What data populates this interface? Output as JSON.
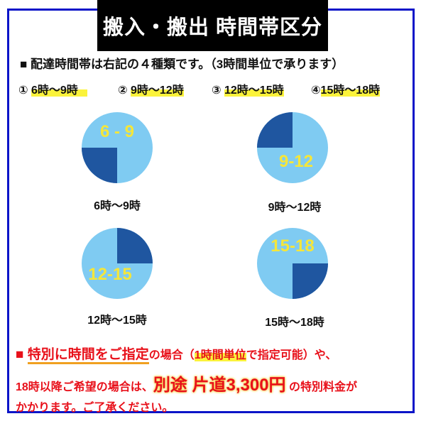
{
  "title": "搬入・搬出 時間帯区分",
  "intro": "■ 配達時間帯は右記の４種類です。（3時間単位で承ります）",
  "slots": [
    {
      "num": "①",
      "label": "6時〜9時",
      "pie_text": "6 - 9",
      "dark_quadrant": "bottom-left"
    },
    {
      "num": "②",
      "label": "9時〜12時",
      "pie_text": "9-12",
      "dark_quadrant": "top-left"
    },
    {
      "num": "③",
      "label": "12時〜15時",
      "pie_text": "12-15",
      "dark_quadrant": "top-right"
    },
    {
      "num": "④",
      "label": "15時〜18時",
      "pie_text": "15-18",
      "dark_quadrant": "bottom-right"
    }
  ],
  "colors": {
    "light": "#7fcbf2",
    "dark": "#1f56a0",
    "pie_text": "#f5e63a",
    "note": "#e8101a",
    "border": "#0a14c8"
  },
  "note": {
    "l1_square": "■",
    "l1_a": "特別に時間をご指定",
    "l1_b": "の場合（",
    "l1_c": "1時間単位",
    "l1_d": "で指定可能）や、",
    "l2_a": "18時以降ご希望の場合は、",
    "l2_price": "別途 片道3,300円",
    "l2_b": " の特別料金が",
    "l3": "かかります。ご了承ください。"
  }
}
